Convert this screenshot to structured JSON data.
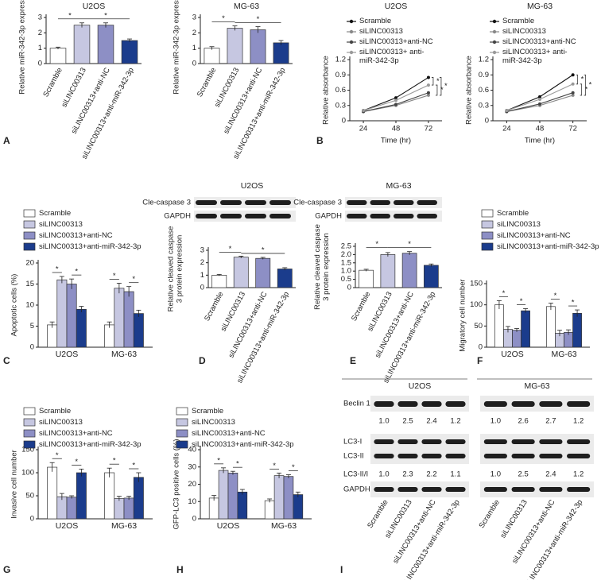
{
  "panel_labels": [
    "A",
    "B",
    "C",
    "D",
    "E",
    "F",
    "G",
    "H",
    "I"
  ],
  "chart_data": [
    {
      "type": "bar",
      "title": "U2OS",
      "ylabel": "Relative miR-342-3p expression",
      "categories": [
        "Scramble",
        "siLINC00313",
        "siLINC00313+anti-NC",
        "siLINC00313+anti-miR-342-3p"
      ],
      "values": [
        1.0,
        2.5,
        2.5,
        1.5
      ],
      "errors": [
        0.07,
        0.15,
        0.15,
        0.1
      ],
      "colors": [
        "#ffffff",
        "#c6c7e1",
        "#8d8fc5",
        "#1b3c8c"
      ],
      "ylim": [
        0,
        3
      ],
      "yticks": [
        0,
        1,
        2,
        3
      ],
      "significance": [
        "*",
        "*"
      ]
    },
    {
      "type": "bar",
      "title": "MG-63",
      "ylabel": "Relative miR-342-3p expression",
      "categories": [
        "Scramble",
        "siLINC00313",
        "siLINC00313+anti-NC",
        "siLINC00313+anti-miR-342-3p"
      ],
      "values": [
        1.0,
        2.3,
        2.2,
        1.35
      ],
      "errors": [
        0.1,
        0.15,
        0.2,
        0.15
      ],
      "colors": [
        "#ffffff",
        "#c6c7e1",
        "#8d8fc5",
        "#1b3c8c"
      ],
      "ylim": [
        0,
        3
      ],
      "yticks": [
        0,
        1,
        2,
        3
      ],
      "significance": [
        "*",
        "*"
      ]
    },
    {
      "type": "line",
      "title": "U2OS",
      "xlabel": "Time (hr)",
      "ylabel": "Relative absorbance",
      "x": [
        24,
        48,
        72
      ],
      "xlim": [
        14,
        82
      ],
      "xticks": [
        24,
        48,
        72
      ],
      "ylim": [
        0,
        1.2
      ],
      "yticks": [
        0,
        0.3,
        0.6,
        0.9,
        1.2
      ],
      "series": [
        {
          "name": "Scramble",
          "color": "#111111",
          "values": [
            0.2,
            0.45,
            0.85
          ]
        },
        {
          "name": "siLINC00313",
          "color": "#888888",
          "values": [
            0.18,
            0.3,
            0.5
          ]
        },
        {
          "name": "siLINC00313+anti-NC",
          "color": "#444444",
          "values": [
            0.18,
            0.32,
            0.55
          ]
        },
        {
          "name": "siLINC00313+ anti-miR-342-3p",
          "color": "#9a9a9a",
          "values": [
            0.2,
            0.4,
            0.7
          ]
        }
      ],
      "significance": [
        "*",
        "*",
        "*"
      ]
    },
    {
      "type": "line",
      "title": "MG-63",
      "xlabel": "Time (hr)",
      "ylabel": "Relative absorbance",
      "x": [
        24,
        48,
        72
      ],
      "xlim": [
        14,
        82
      ],
      "xticks": [
        24,
        48,
        72
      ],
      "ylim": [
        0,
        1.2
      ],
      "yticks": [
        0,
        0.3,
        0.6,
        0.9,
        1.2
      ],
      "series": [
        {
          "name": "Scramble",
          "color": "#111111",
          "values": [
            0.2,
            0.47,
            0.9
          ]
        },
        {
          "name": "siLINC00313",
          "color": "#888888",
          "values": [
            0.18,
            0.3,
            0.5
          ]
        },
        {
          "name": "siLINC00313+anti-NC",
          "color": "#444444",
          "values": [
            0.18,
            0.33,
            0.55
          ]
        },
        {
          "name": "siLINC00313+ anti-miR-342-3p",
          "color": "#9a9a9a",
          "values": [
            0.2,
            0.42,
            0.72
          ]
        }
      ],
      "significance": [
        "*",
        "*",
        "*"
      ]
    },
    {
      "type": "bar",
      "ylabel": "Apoptotic cells (%)",
      "categories": [
        "U2OS",
        "MG-63"
      ],
      "ylim": [
        0,
        20
      ],
      "yticks": [
        0,
        5,
        10,
        15,
        20
      ],
      "series": [
        {
          "name": "Scramble",
          "color": "#ffffff",
          "values": [
            5.3,
            5.3
          ],
          "errors": [
            0.7,
            0.7
          ]
        },
        {
          "name": "siLINC00313",
          "color": "#c6c7e1",
          "values": [
            16,
            14
          ],
          "errors": [
            0.8,
            1.2
          ]
        },
        {
          "name": "siLINC00313+anti-NC",
          "color": "#8d8fc5",
          "values": [
            15,
            13.2
          ],
          "errors": [
            1.2,
            1.2
          ]
        },
        {
          "name": "siLINC00313+anti-miR-342-3p",
          "color": "#1b3c8c",
          "values": [
            9,
            8
          ],
          "errors": [
            0.7,
            0.8
          ]
        }
      ],
      "significance": [
        "*",
        "*",
        "*",
        "*"
      ]
    },
    {
      "type": "bar",
      "title": "U2OS",
      "blot_labels": [
        "Cle-caspase 3",
        "GAPDH"
      ],
      "ylabel": "Relative cleaved caspase 3 protein expression",
      "categories": [
        "Scramble",
        "siLINC00313",
        "siLINC00313+anti-NC",
        "siLINC00313+anti-miR-342-3p"
      ],
      "values": [
        1.0,
        2.45,
        2.35,
        1.5
      ],
      "errors": [
        0.06,
        0.08,
        0.08,
        0.1
      ],
      "colors": [
        "#ffffff",
        "#c6c7e1",
        "#8d8fc5",
        "#1b3c8c"
      ],
      "ylim": [
        0,
        3
      ],
      "yticks": [
        0,
        1,
        2,
        3
      ],
      "significance": [
        "*",
        "*"
      ]
    },
    {
      "type": "bar",
      "title": "MG-63",
      "blot_labels": [
        "Cle-caspase 3",
        "GAPDH"
      ],
      "ylabel": "Relative cleaved caspase 3 protein expression",
      "categories": [
        "Scramble",
        "siLINC00313",
        "siLINC00313+anti-NC",
        "siLINC00313+anti-miR-342-3p"
      ],
      "values": [
        1.05,
        2.0,
        2.08,
        1.35
      ],
      "errors": [
        0.06,
        0.12,
        0.1,
        0.08
      ],
      "colors": [
        "#ffffff",
        "#c6c7e1",
        "#8d8fc5",
        "#1b3c8c"
      ],
      "ylim": [
        0,
        2.5
      ],
      "yticks": [
        0,
        {
          "value": 0.5,
          "label": "0.5"
        },
        {
          "value": 1,
          "label": "1.0"
        },
        {
          "value": 1.5,
          "label": "1.5"
        },
        {
          "value": 2,
          "label": "2.0"
        },
        {
          "value": 2.5,
          "label": "2.5"
        }
      ],
      "significance": [
        "*",
        "*"
      ]
    },
    {
      "type": "bar",
      "ylabel": "Migratory cell number",
      "categories": [
        "U2OS",
        "MG-63"
      ],
      "ylim": [
        0,
        150
      ],
      "yticks": [
        0,
        50,
        100,
        150
      ],
      "series": [
        {
          "name": "Scramble",
          "color": "#ffffff",
          "values": [
            100,
            96
          ],
          "errors": [
            10,
            8
          ]
        },
        {
          "name": "siLINC00313",
          "color": "#c6c7e1",
          "values": [
            42,
            33
          ],
          "errors": [
            7,
            7
          ]
        },
        {
          "name": "siLINC00313+anti-NC",
          "color": "#8d8fc5",
          "values": [
            40,
            35
          ],
          "errors": [
            4,
            6
          ]
        },
        {
          "name": "siLINC00313+anti-miR-342-3p",
          "color": "#1b3c8c",
          "values": [
            86,
            80
          ],
          "errors": [
            5,
            8
          ]
        }
      ],
      "significance": [
        "*",
        "*",
        "*",
        "*"
      ]
    },
    {
      "type": "bar",
      "ylabel": "Invasive cell number",
      "categories": [
        "U2OS",
        "MG-63"
      ],
      "ylim": [
        0,
        150
      ],
      "yticks": [
        0,
        50,
        100,
        150
      ],
      "series": [
        {
          "name": "Scramble",
          "color": "#ffffff",
          "values": [
            112,
            100
          ],
          "errors": [
            10,
            10
          ]
        },
        {
          "name": "siLINC00313",
          "color": "#c6c7e1",
          "values": [
            48,
            44
          ],
          "errors": [
            7,
            5
          ]
        },
        {
          "name": "siLINC00313+anti-NC",
          "color": "#8d8fc5",
          "values": [
            47,
            45
          ],
          "errors": [
            3,
            4
          ]
        },
        {
          "name": "siLINC00313+anti-miR-342-3p",
          "color": "#1b3c8c",
          "values": [
            100,
            90
          ],
          "errors": [
            8,
            10
          ]
        }
      ],
      "significance": [
        "*",
        "*",
        "*",
        "*"
      ]
    },
    {
      "type": "bar",
      "ylabel": "GFP-LC3 positive cells (%)",
      "categories": [
        "U2OS",
        "MG-63"
      ],
      "ylim": [
        0,
        40
      ],
      "yticks": [
        0,
        10,
        20,
        30,
        40
      ],
      "series": [
        {
          "name": "Scramble",
          "color": "#ffffff",
          "values": [
            12,
            10.5
          ],
          "errors": [
            1.5,
            1
          ]
        },
        {
          "name": "siLINC00313",
          "color": "#c6c7e1",
          "values": [
            28,
            25
          ],
          "errors": [
            1.5,
            1.5
          ]
        },
        {
          "name": "siLINC00313+anti-NC",
          "color": "#8d8fc5",
          "values": [
            26.5,
            24.5
          ],
          "errors": [
            1,
            1
          ]
        },
        {
          "name": "siLINC00313+anti-miR-342-3p",
          "color": "#1b3c8c",
          "values": [
            15.5,
            14
          ],
          "errors": [
            1.5,
            1.5
          ]
        }
      ],
      "significance": [
        "*",
        "*",
        "*",
        "*"
      ]
    }
  ],
  "blot_panel": {
    "rows": [
      "Beclin 1",
      "LC3-I",
      "LC3-II",
      "LC3-II/I",
      "GAPDH"
    ],
    "categories": [
      "Scramble",
      "siLINC00313",
      "siLINC00313+anti-NC",
      "siLINC00313+anti-miR-342-3p"
    ],
    "groups": [
      {
        "title": "U2OS",
        "beclin_ratios": [
          "1.0",
          "2.5",
          "2.4",
          "1.2"
        ],
        "lc3_ratios": [
          "1.0",
          "2.3",
          "2.2",
          "1.1"
        ]
      },
      {
        "title": "MG-63",
        "beclin_ratios": [
          "1.0",
          "2.6",
          "2.7",
          "1.2"
        ],
        "lc3_ratios": [
          "1.0",
          "2.5",
          "2.4",
          "1.2"
        ]
      }
    ]
  }
}
